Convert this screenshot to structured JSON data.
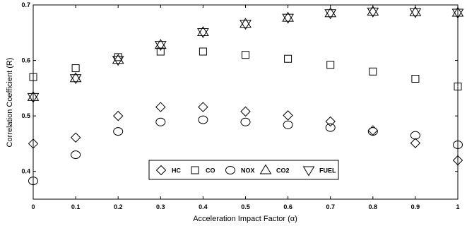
{
  "chart_data": {
    "type": "scatter",
    "title": "",
    "xlabel": "Acceleration Impact Factor (α)",
    "ylabel": "Correlation Coefficient (R)",
    "x": [
      0,
      0.1,
      0.2,
      0.3,
      0.4,
      0.5,
      0.6,
      0.7,
      0.8,
      0.9,
      1
    ],
    "xlim": [
      0,
      1
    ],
    "ylim": [
      0.35,
      0.7
    ],
    "x_ticks": [
      "0",
      "0.1",
      "0.2",
      "0.3",
      "0.4",
      "0.5",
      "0.6",
      "0.7",
      "0.8",
      "0.9",
      "1"
    ],
    "y_ticks": [
      {
        "value": 0.4,
        "label": "0.4"
      },
      {
        "value": 0.5,
        "label": "0.5"
      },
      {
        "value": 0.6,
        "label": "0.6"
      },
      {
        "value": 0.7,
        "label": "0.7"
      }
    ],
    "grid": false,
    "legend_position": "bottom-center",
    "series": [
      {
        "name": "HC",
        "marker": "diamond",
        "values": [
          0.45,
          0.461,
          0.5,
          0.516,
          0.516,
          0.508,
          0.501,
          0.49,
          0.474,
          0.451,
          0.42
        ]
      },
      {
        "name": "CO",
        "marker": "square",
        "values": [
          0.57,
          0.586,
          0.606,
          0.616,
          0.616,
          0.61,
          0.603,
          0.592,
          0.58,
          0.567,
          0.553
        ]
      },
      {
        "name": "NOX",
        "marker": "circle",
        "values": [
          0.383,
          0.43,
          0.472,
          0.489,
          0.493,
          0.489,
          0.484,
          0.479,
          0.472,
          0.465,
          0.448
        ]
      },
      {
        "name": "CO2",
        "marker": "triangle-up",
        "values": [
          0.534,
          0.568,
          0.601,
          0.628,
          0.651,
          0.666,
          0.677,
          0.685,
          0.688,
          0.687,
          0.686
        ]
      },
      {
        "name": "FUEL",
        "marker": "triangle-down",
        "values": [
          0.534,
          0.568,
          0.601,
          0.628,
          0.651,
          0.666,
          0.677,
          0.685,
          0.688,
          0.687,
          0.686
        ]
      }
    ]
  }
}
